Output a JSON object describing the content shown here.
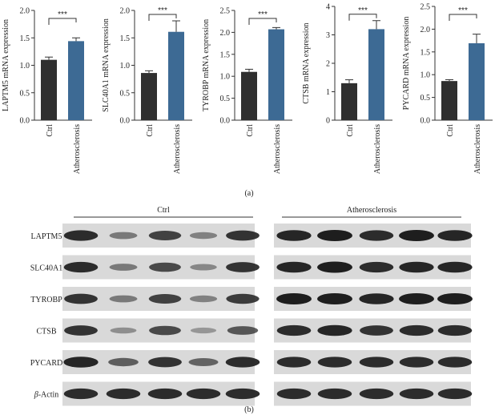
{
  "panel_labels": {
    "a": "(a)",
    "b": "(b)"
  },
  "colors": {
    "ctrl": "#2f2f2f",
    "disease": "#3d6a94",
    "axis": "#333333",
    "blot_bg": "#d9d9d9",
    "band": "#1e1e1e"
  },
  "chart_data": [
    {
      "type": "bar",
      "ylabel": "LAPTM5 mRNA expression",
      "categories": [
        "Ctrl",
        "Atherosclerosis"
      ],
      "values": [
        1.1,
        1.44
      ],
      "errors": [
        0.05,
        0.06
      ],
      "ylim": [
        0,
        2.0
      ],
      "yticks": [
        "0.0",
        "0.5",
        "1.0",
        "1.5",
        "2.0"
      ],
      "tick_values": [
        0,
        0.5,
        1.0,
        1.5,
        2.0
      ],
      "significance": "***"
    },
    {
      "type": "bar",
      "ylabel": "SLC40A1 mRNA expression",
      "categories": [
        "Ctrl",
        "Atherosclerosis"
      ],
      "values": [
        0.86,
        1.61
      ],
      "errors": [
        0.04,
        0.2
      ],
      "ylim": [
        0,
        2.0
      ],
      "yticks": [
        "0.0",
        "0.5",
        "1.0",
        "1.5",
        "2.0"
      ],
      "tick_values": [
        0,
        0.5,
        1.0,
        1.5,
        2.0
      ],
      "significance": "***"
    },
    {
      "type": "bar",
      "ylabel": "TYROBP mRNA expression",
      "categories": [
        "Ctrl",
        "Atherosclerosis"
      ],
      "values": [
        1.1,
        2.07
      ],
      "errors": [
        0.06,
        0.04
      ],
      "ylim": [
        0,
        2.5
      ],
      "yticks": [
        "0.0",
        "0.5",
        "1.0",
        "1.5",
        "2.0",
        "2.5"
      ],
      "tick_values": [
        0,
        0.5,
        1.0,
        1.5,
        2.0,
        2.5
      ],
      "significance": "***"
    },
    {
      "type": "bar",
      "ylabel": "CTSB mRNA expression",
      "categories": [
        "Ctrl",
        "Atherosclerosis"
      ],
      "values": [
        1.3,
        3.2
      ],
      "errors": [
        0.12,
        0.3
      ],
      "ylim": [
        0,
        4
      ],
      "yticks": [
        "0",
        "1",
        "2",
        "3",
        "4"
      ],
      "tick_values": [
        0,
        1,
        2,
        3,
        4
      ],
      "significance": "***"
    },
    {
      "type": "bar",
      "ylabel": "PYCARD mRNA expression",
      "categories": [
        "Ctrl",
        "Atherosclerosis"
      ],
      "values": [
        0.86,
        1.69
      ],
      "errors": [
        0.03,
        0.2
      ],
      "ylim": [
        0,
        2.5
      ],
      "yticks": [
        "0.0",
        "0.5",
        "1.0",
        "1.5",
        "2.0",
        "2.5"
      ],
      "tick_values": [
        0,
        0.5,
        1.0,
        1.5,
        2.0,
        2.5
      ],
      "significance": "***"
    }
  ],
  "blot": {
    "group_labels": [
      "Ctrl",
      "Atherosclerosis"
    ],
    "rows": [
      {
        "label": "LAPTM5",
        "ctrl_intensity": [
          0.9,
          0.35,
          0.75,
          0.3,
          0.85
        ],
        "disease_intensity": [
          0.95,
          1.0,
          0.9,
          1.0,
          0.95
        ]
      },
      {
        "label": "SLC40A1",
        "ctrl_intensity": [
          0.9,
          0.35,
          0.7,
          0.25,
          0.85
        ],
        "disease_intensity": [
          0.95,
          1.0,
          0.9,
          0.95,
          0.95
        ]
      },
      {
        "label": "TYROBP",
        "ctrl_intensity": [
          0.85,
          0.35,
          0.75,
          0.3,
          0.8
        ],
        "disease_intensity": [
          1.0,
          1.0,
          0.95,
          1.0,
          1.0
        ]
      },
      {
        "label": "CTSB",
        "ctrl_intensity": [
          0.85,
          0.2,
          0.7,
          0.15,
          0.6
        ],
        "disease_intensity": [
          0.9,
          0.95,
          0.85,
          0.9,
          0.9
        ]
      },
      {
        "label": "PYCARD",
        "ctrl_intensity": [
          0.95,
          0.55,
          0.85,
          0.5,
          0.9
        ],
        "disease_intensity": [
          0.9,
          0.9,
          0.9,
          0.9,
          0.9
        ]
      },
      {
        "label": "β-Actin",
        "label_prefix": "β",
        "label_suffix": "-Actin",
        "ctrl_intensity": [
          0.9,
          0.9,
          0.9,
          0.9,
          0.9
        ],
        "disease_intensity": [
          0.9,
          0.9,
          0.9,
          0.9,
          0.9
        ]
      }
    ]
  }
}
